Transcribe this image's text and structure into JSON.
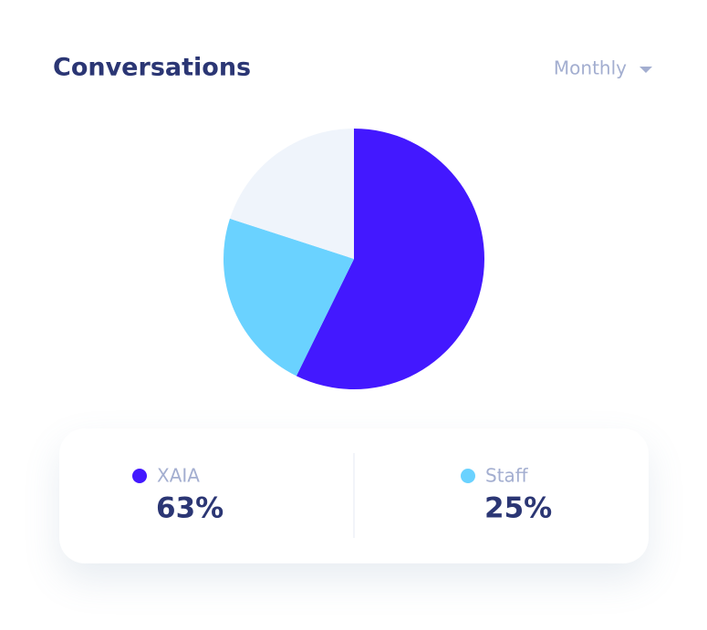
{
  "chart_data": {
    "type": "pie",
    "title": "Conversations",
    "period": "Monthly",
    "categories": [
      "XAIA",
      "Staff",
      null
    ],
    "values": [
      63,
      25,
      22
    ],
    "value_labels": [
      "63%",
      "25%",
      null
    ],
    "colors": [
      "#4318ff",
      "#6ad2ff",
      "#eff4fb"
    ]
  }
}
